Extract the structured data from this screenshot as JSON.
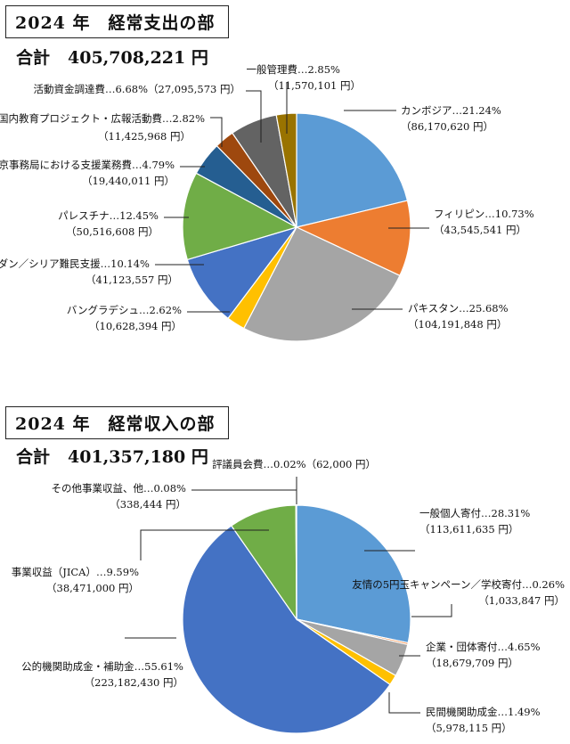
{
  "chart_data": [
    {
      "type": "pie",
      "title": "2024 年　経常支出の部",
      "total_label": "合計",
      "total_value": "405,708,221 円",
      "slices": [
        {
          "name": "カンボジア",
          "percent": 21.24,
          "value": "86,170,620",
          "color": "#5b9bd5"
        },
        {
          "name": "フィリピン",
          "percent": 10.73,
          "value": "43,545,541",
          "color": "#ed7d31"
        },
        {
          "name": "パキスタン",
          "percent": 25.68,
          "value": "104,191,848",
          "color": "#a5a5a5"
        },
        {
          "name": "バングラデシュ",
          "percent": 2.62,
          "value": "10,628,394",
          "color": "#ffc000"
        },
        {
          "name": "ヨルダン／シリア難民支援",
          "percent": 10.14,
          "value": "41,123,557",
          "color": "#4472c4"
        },
        {
          "name": "パレスチナ",
          "percent": 12.45,
          "value": "50,516,608",
          "color": "#70ad47"
        },
        {
          "name": "東京事務局における支援業務費",
          "percent": 4.79,
          "value": "19,440,011",
          "color": "#255e91"
        },
        {
          "name": "国内教育プロジェクト・広報活動費",
          "percent": 2.82,
          "value": "11,425,968",
          "color": "#9e480e"
        },
        {
          "name": "活動資金調達費",
          "percent": 6.68,
          "value": "27,095,573",
          "color": "#636363"
        },
        {
          "name": "一般管理費",
          "percent": 2.85,
          "value": "11,570,101",
          "color": "#997300"
        }
      ]
    },
    {
      "type": "pie",
      "title": "2024 年　経常収入の部",
      "total_label": "合計",
      "total_value": "401,357,180 円",
      "slices": [
        {
          "name": "一般個人寄付",
          "percent": 28.31,
          "value": "113,611,635",
          "color": "#5b9bd5"
        },
        {
          "name": "友情の5円玉キャンペーン／学校寄付",
          "percent": 0.26,
          "value": "1,033,847",
          "color": "#ed7d31"
        },
        {
          "name": "企業・団体寄付",
          "percent": 4.65,
          "value": "18,679,709",
          "color": "#a5a5a5"
        },
        {
          "name": "民間機関助成金",
          "percent": 1.49,
          "value": "5,978,115",
          "color": "#ffc000"
        },
        {
          "name": "公的機関助成金・補助金",
          "percent": 55.61,
          "value": "223,182,430",
          "color": "#4472c4"
        },
        {
          "name": "事業収益（JICA）",
          "percent": 9.59,
          "value": "38,471,000",
          "color": "#70ad47"
        },
        {
          "name": "その他事業収益、他",
          "percent": 0.08,
          "value": "338,444",
          "color": "#255e91"
        },
        {
          "name": "評議員会費",
          "percent": 0.02,
          "value": "62,000",
          "color": "#9e480e"
        }
      ]
    }
  ]
}
